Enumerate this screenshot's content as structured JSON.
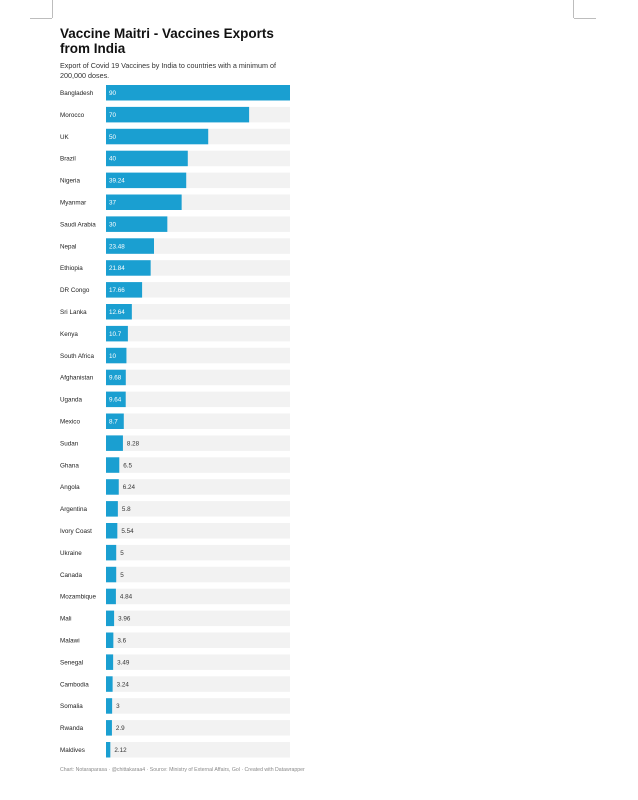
{
  "title": "Vaccine Maitri - Vaccines Exports from India",
  "subtitle": "Export of Covid 19 Vaccines by India to countries with a minimum of 200,000 doses.",
  "footer": "Chart: Notaraparasa · @chittakaraa4 · Source: Ministry of External Affairs, Gol · Created with Datawrapper",
  "colors": {
    "bar": "#1a9fd1",
    "track": "#f2f2f2",
    "label_inside": "#ffffff",
    "label_outside": "#333333"
  },
  "chart_data": {
    "type": "bar",
    "orientation": "horizontal",
    "title": "Vaccine Maitri - Vaccines Exports from India",
    "subtitle": "Export of Covid 19 Vaccines by India to countries with a minimum of 200,000 doses.",
    "xlim": [
      0,
      90
    ],
    "categories": [
      "Bangladesh",
      "Morocco",
      "UK",
      "Brazil",
      "Nigeria",
      "Myanmar",
      "Saudi Arabia",
      "Nepal",
      "Ethiopia",
      "DR Congo",
      "Sri Lanka",
      "Kenya",
      "South Africa",
      "Afghanistan",
      "Uganda",
      "Mexico",
      "Sudan",
      "Ghana",
      "Angola",
      "Argentina",
      "Ivory Coast",
      "Ukraine",
      "Canada",
      "Mozambique",
      "Mali",
      "Malawi",
      "Senegal",
      "Cambodia",
      "Somalia",
      "Rwanda",
      "Maldives"
    ],
    "values": [
      90,
      70,
      50,
      40,
      39.24,
      37,
      30,
      23.48,
      21.84,
      17.66,
      12.64,
      10.7,
      10,
      9.68,
      9.64,
      8.7,
      8.28,
      6.5,
      6.24,
      5.8,
      5.54,
      5,
      5,
      4.84,
      3.96,
      3.6,
      3.49,
      3.24,
      3,
      2.9,
      2.12
    ],
    "value_labels": [
      "90",
      "70",
      "50",
      "40",
      "39.24",
      "37",
      "30",
      "23.48",
      "21.84",
      "17.66",
      "12.64",
      "10.7",
      "10",
      "9.68",
      "9.64",
      "8.7",
      "8.28",
      "6.5",
      "6.24",
      "5.8",
      "5.54",
      "5",
      "5",
      "4.84",
      "3.96",
      "3.6",
      "3.49",
      "3.24",
      "3",
      "2.9",
      "2.12"
    ]
  }
}
